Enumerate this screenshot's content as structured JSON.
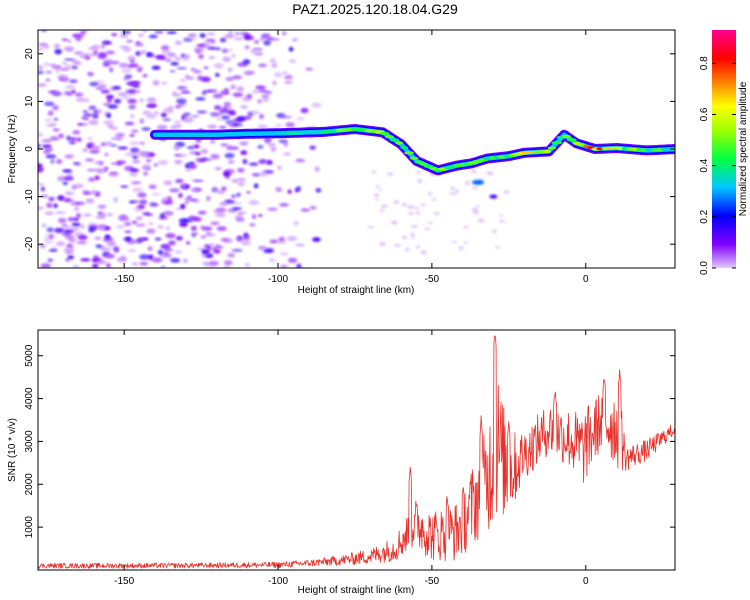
{
  "figure": {
    "title": "PAZ1.2025.120.18.04.G29"
  },
  "chart_data": [
    {
      "type": "heatmap",
      "xlabel": "Height of straight line (km)",
      "ylabel": "Frequency (Hz)",
      "xlim": [
        -178,
        29
      ],
      "ylim": [
        -25,
        25
      ],
      "xticks": [
        -150,
        -100,
        -50,
        0
      ],
      "yticks": [
        -20,
        -10,
        0,
        10,
        20
      ],
      "colorbar": {
        "label": "Normalized spectral amplitude",
        "range": [
          0,
          0.93
        ],
        "ticks": [
          "0.0",
          "0.2",
          "0.4",
          "0.6",
          "0.8"
        ],
        "colors": [
          "#e3c8ff",
          "#7f00ff",
          "#0000ff",
          "#00c8ff",
          "#00ff00",
          "#ffff00",
          "#ff8000",
          "#ff0000",
          "#ff0090"
        ]
      },
      "ridge": {
        "description_points": [
          {
            "x": -140,
            "y": 3,
            "amp": 0.25
          },
          {
            "x": -120,
            "y": 3,
            "amp": 0.3
          },
          {
            "x": -110,
            "y": 3.2,
            "amp": 0.3
          },
          {
            "x": -100,
            "y": 3.3,
            "amp": 0.35
          },
          {
            "x": -85,
            "y": 3.6,
            "amp": 0.45
          },
          {
            "x": -75,
            "y": 4.2,
            "amp": 0.55
          },
          {
            "x": -66,
            "y": 3.5,
            "amp": 0.6
          },
          {
            "x": -60,
            "y": 1.0,
            "amp": 0.5
          },
          {
            "x": -55,
            "y": -2.5,
            "amp": 0.5
          },
          {
            "x": -48,
            "y": -4.5,
            "amp": 0.55
          },
          {
            "x": -42,
            "y": -3.5,
            "amp": 0.5
          },
          {
            "x": -37,
            "y": -3.0,
            "amp": 0.5
          },
          {
            "x": -32,
            "y": -2.0,
            "amp": 0.45
          },
          {
            "x": -25,
            "y": -1.5,
            "amp": 0.5
          },
          {
            "x": -20,
            "y": -0.8,
            "amp": 0.8
          },
          {
            "x": -12,
            "y": -0.5,
            "amp": 0.6
          },
          {
            "x": -7,
            "y": 3.0,
            "amp": 0.5
          },
          {
            "x": -3,
            "y": 1.2,
            "amp": 0.6
          },
          {
            "x": 3,
            "y": 0.0,
            "amp": 0.9
          },
          {
            "x": 10,
            "y": 0.2,
            "amp": 0.6
          },
          {
            "x": 20,
            "y": -0.3,
            "amp": 0.5
          },
          {
            "x": 29,
            "y": 0.0,
            "amp": 0.45
          }
        ]
      }
    },
    {
      "type": "line",
      "xlabel": "Height of straight line (km)",
      "ylabel": "SNR (10 * v/v)",
      "xlim": [
        -178,
        29
      ],
      "ylim": [
        0,
        5600
      ],
      "xticks": [
        -150,
        -100,
        -50,
        0
      ],
      "yticks": [
        1000,
        2000,
        3000,
        4000,
        5000
      ],
      "color": "#e8302a",
      "envelope_points": [
        {
          "x": -178,
          "y": 100,
          "spread": 60
        },
        {
          "x": -150,
          "y": 100,
          "spread": 60
        },
        {
          "x": -120,
          "y": 110,
          "spread": 60
        },
        {
          "x": -100,
          "y": 120,
          "spread": 70
        },
        {
          "x": -90,
          "y": 160,
          "spread": 80
        },
        {
          "x": -80,
          "y": 220,
          "spread": 120
        },
        {
          "x": -70,
          "y": 320,
          "spread": 180
        },
        {
          "x": -62,
          "y": 500,
          "spread": 300
        },
        {
          "x": -55,
          "y": 1100,
          "spread": 600
        },
        {
          "x": -50,
          "y": 800,
          "spread": 600
        },
        {
          "x": -42,
          "y": 900,
          "spread": 700
        },
        {
          "x": -36,
          "y": 1600,
          "spread": 1000
        },
        {
          "x": -32,
          "y": 2100,
          "spread": 1300
        },
        {
          "x": -29,
          "y": 3000,
          "spread": 1800
        },
        {
          "x": -25,
          "y": 2200,
          "spread": 1000
        },
        {
          "x": -20,
          "y": 2700,
          "spread": 600
        },
        {
          "x": -12,
          "y": 3300,
          "spread": 600
        },
        {
          "x": -6,
          "y": 3100,
          "spread": 700
        },
        {
          "x": -1,
          "y": 2800,
          "spread": 900
        },
        {
          "x": 5,
          "y": 3500,
          "spread": 700
        },
        {
          "x": 11,
          "y": 3300,
          "spread": 1000
        },
        {
          "x": 13,
          "y": 2600,
          "spread": 300
        },
        {
          "x": 20,
          "y": 2800,
          "spread": 250
        },
        {
          "x": 29,
          "y": 3300,
          "spread": 150
        }
      ],
      "peaks": [
        {
          "x": -57,
          "y": 2450
        },
        {
          "x": -45,
          "y": 1850
        },
        {
          "x": -34,
          "y": 3600
        },
        {
          "x": -29.5,
          "y": 5600
        },
        {
          "x": -25,
          "y": 3500
        },
        {
          "x": -10,
          "y": 4300
        },
        {
          "x": 6,
          "y": 4650
        },
        {
          "x": 11,
          "y": 4750
        }
      ]
    }
  ]
}
